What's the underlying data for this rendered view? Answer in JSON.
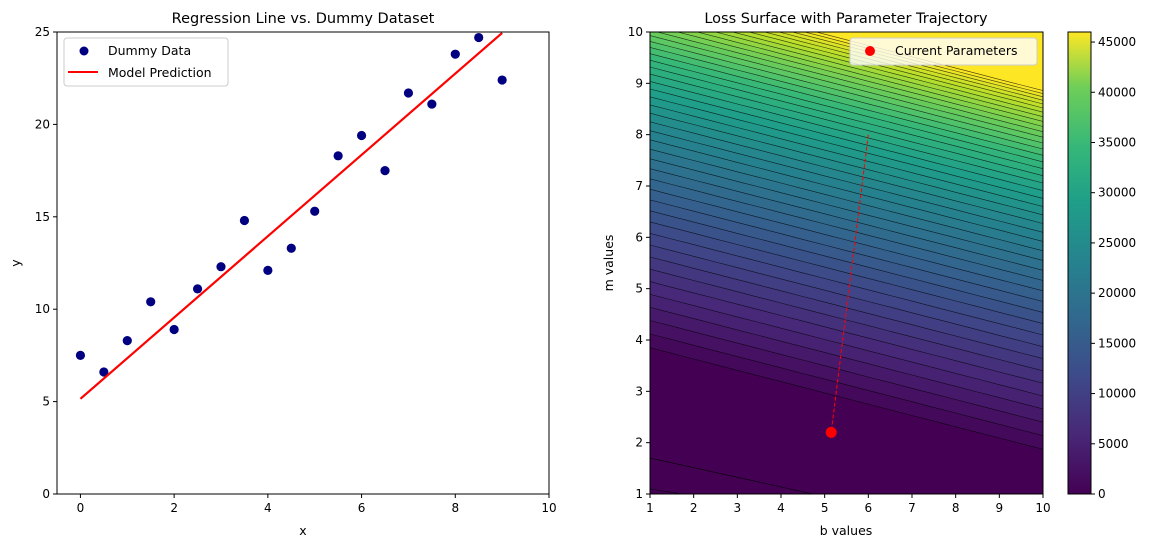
{
  "chart_data": [
    {
      "type": "scatter",
      "title": "Regression Line vs. Dummy Dataset",
      "xlabel": "x",
      "ylabel": "y",
      "xlim": [
        -0.5,
        10
      ],
      "ylim": [
        0,
        25
      ],
      "xticks": [
        0,
        2,
        4,
        6,
        8,
        10
      ],
      "yticks": [
        0,
        5,
        10,
        15,
        20,
        25
      ],
      "legend_position": "upper-left",
      "series": [
        {
          "name": "Dummy Data",
          "kind": "scatter",
          "color": "#000080",
          "points": [
            [
              0,
              7.5
            ],
            [
              0.5,
              6.6
            ],
            [
              1,
              8.3
            ],
            [
              1.5,
              10.4
            ],
            [
              2,
              8.9
            ],
            [
              2.5,
              11.1
            ],
            [
              3,
              12.3
            ],
            [
              3.5,
              14.8
            ],
            [
              4,
              12.1
            ],
            [
              4.5,
              13.3
            ],
            [
              5,
              15.3
            ],
            [
              5.5,
              18.3
            ],
            [
              6,
              19.4
            ],
            [
              6.5,
              17.5
            ],
            [
              7,
              21.7
            ],
            [
              7.5,
              21.1
            ],
            [
              8,
              23.8
            ],
            [
              8.5,
              24.7
            ],
            [
              9,
              22.4
            ]
          ]
        },
        {
          "name": "Model Prediction",
          "kind": "line",
          "color": "#ff0000",
          "slope": 2.2,
          "intercept": 5.15,
          "x_range": [
            0,
            9
          ]
        }
      ]
    },
    {
      "type": "contour",
      "title": "Loss Surface with Parameter Trajectory",
      "xlabel": "b values",
      "ylabel": "m values",
      "xlim": [
        1,
        10
      ],
      "ylim": [
        1,
        10
      ],
      "xticks": [
        1,
        2,
        3,
        4,
        5,
        6,
        7,
        8,
        9,
        10
      ],
      "yticks": [
        1,
        2,
        3,
        4,
        5,
        6,
        7,
        8,
        9,
        10
      ],
      "colormap": "viridis",
      "colorbar": {
        "min": 0,
        "max": 46000,
        "ticks": [
          0,
          5000,
          10000,
          15000,
          20000,
          25000,
          30000,
          35000,
          40000,
          45000
        ]
      },
      "legend_position": "upper-right",
      "trajectory": {
        "name": "Current Parameters",
        "color": "#ff0000",
        "points": [
          [
            6,
            8.0
          ],
          [
            5.15,
            2.2
          ]
        ]
      }
    }
  ]
}
